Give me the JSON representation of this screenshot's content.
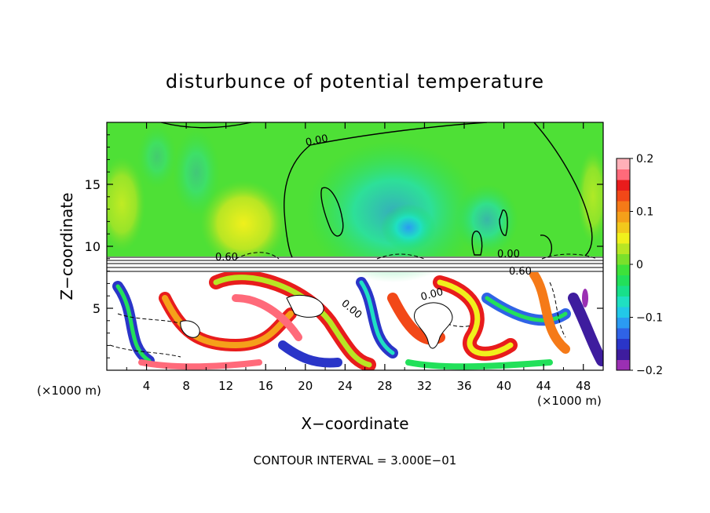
{
  "chart_data": {
    "type": "heatmap",
    "title": "disturbunce of potential temperature",
    "xlabel": "X−coordinate",
    "ylabel": "Z−coordinate",
    "x_unit_left": "(×1000 m)",
    "x_unit_right": "(×1000 m)",
    "xlim": [
      0,
      50
    ],
    "ylim": [
      0,
      20
    ],
    "x_ticks": [
      4,
      8,
      12,
      16,
      20,
      24,
      28,
      32,
      36,
      40,
      44,
      48
    ],
    "y_ticks": [
      5,
      10,
      15
    ],
    "x_tick_labels": [
      "4",
      "8",
      "12",
      "16",
      "20",
      "24",
      "28",
      "32",
      "36",
      "40",
      "44",
      "48"
    ],
    "y_tick_labels": [
      "5",
      "10",
      "15"
    ],
    "colorbar": {
      "min": -0.2,
      "max": 0.2,
      "ticks": [
        0.2,
        0.1,
        0,
        -0.1,
        -0.2
      ],
      "tick_labels": [
        "0.2",
        "0.1",
        "0",
        "−0.1",
        "−0.2"
      ],
      "colors": [
        "#9b2fb3",
        "#3e1c9e",
        "#2a35c8",
        "#2f63e6",
        "#2b9bf2",
        "#22c8e8",
        "#1fe0c2",
        "#18e08a",
        "#22e05a",
        "#3ee23a",
        "#7be02b",
        "#b8e624",
        "#f0f01c",
        "#f2c81c",
        "#f5a01a",
        "#f57a18",
        "#f24818",
        "#e81c1c",
        "#ff6a7a",
        "#ffb0b8"
      ]
    },
    "contour_labels": [
      "0.00",
      "0.60",
      "0.00",
      "0.60",
      "0.00",
      "0.00"
    ],
    "annotation": "CONTOUR INTERVAL = 3.000E−01"
  }
}
